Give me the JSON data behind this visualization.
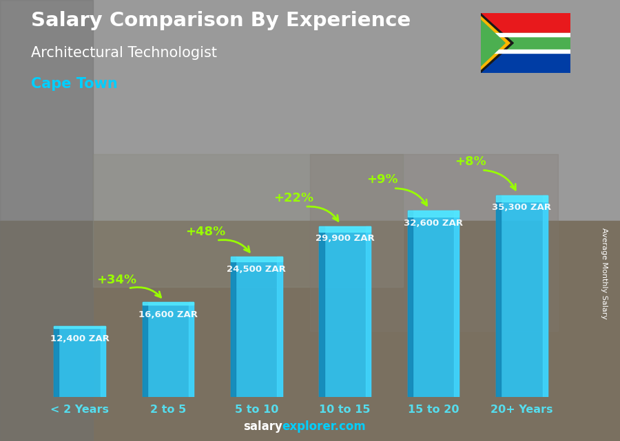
{
  "title_line1": "Salary Comparison By Experience",
  "title_line2": "Architectural Technologist",
  "city": "Cape Town",
  "ylabel": "Average Monthly Salary",
  "categories": [
    "< 2 Years",
    "2 to 5",
    "5 to 10",
    "10 to 15",
    "15 to 20",
    "20+ Years"
  ],
  "values": [
    12400,
    16600,
    24500,
    29900,
    32600,
    35300
  ],
  "value_labels": [
    "12,400 ZAR",
    "16,600 ZAR",
    "24,500 ZAR",
    "29,900 ZAR",
    "32,600 ZAR",
    "35,300 ZAR"
  ],
  "pct_labels": [
    "+34%",
    "+48%",
    "+22%",
    "+9%",
    "+8%"
  ],
  "bar_color_main": "#29C5F6",
  "bar_color_left": "#1488B8",
  "bar_color_right": "#45D8FF",
  "bar_color_top": "#55E8FF",
  "city_color": "#00CFFF",
  "pct_color": "#99FF00",
  "bg_color": "#8a8a8a",
  "ylim": [
    0,
    44000
  ],
  "bar_width": 0.58,
  "bar_depth": 0.1
}
